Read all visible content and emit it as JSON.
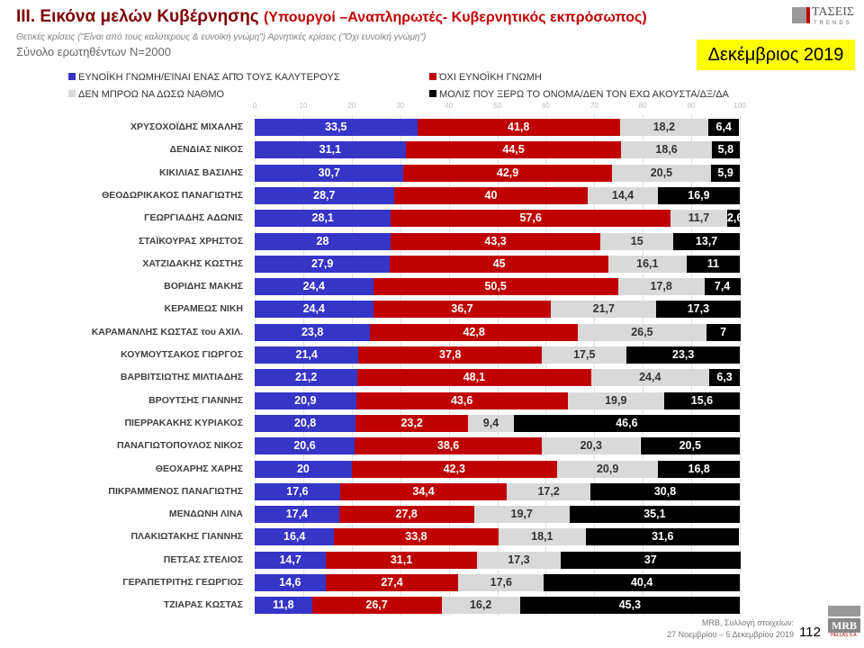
{
  "header": {
    "title": "III. Εικόνα μελών Κυβέρνησης",
    "subtitle": "(Υπουργοί –Αναπληρωτές- Κυβερνητικός εκπρόσωπος)",
    "note": "Θετικές κρίσεις (\"Είναι από τους καλύτερους & ευνοϊκή γνώμη\") Αρνητικές κρίσεις (\"Όχι ευνοϊκή γνώμη\")",
    "sample": "Σύνολο ερωτηθέντων Ν=2000",
    "month": "Δεκέμβριος 2019",
    "logo_text": "ΤΑΣΕΙΣ",
    "logo_sub": "TRENDS"
  },
  "footer": {
    "source_line1": "MRB, Συλλογή στοιχείων:",
    "source_line2": "27 Νοεμβρίου – 5 Δεκεμβρίου 2019",
    "page": "112",
    "logo_text": "MRB",
    "logo_sub": "HELLAS S.A."
  },
  "chart_data": {
    "type": "bar",
    "orientation": "horizontal-stacked",
    "xlim": [
      0,
      100
    ],
    "xticks": [
      "0",
      "10",
      "20",
      "30",
      "40",
      "50",
      "60",
      "70",
      "80",
      "90",
      "100"
    ],
    "grid": true,
    "legend_position": "top",
    "colors": [
      "#3535c8",
      "#c00000",
      "#d9d9d9",
      "#000000"
    ],
    "categories": [
      "ΧΡΥΣΟΧΟΪΔΗΣ ΜΙΧΑΛΗΣ",
      "ΔΕΝΔΙΑΣ ΝΙΚΟΣ",
      "ΚΙΚΙΛΙΑΣ ΒΑΣΙΛΗΣ",
      "ΘΕΟΔΩΡΙΚΑΚΟΣ ΠΑΝΑΓΙΩΤΗΣ",
      "ΓΕΩΡΓΙΑΔΗΣ ΑΔΩΝΙΣ",
      "ΣΤΑΪΚΟΥΡΑΣ ΧΡΗΣΤΟΣ",
      "ΧΑΤΖΙΔΑΚΗΣ ΚΩΣΤΗΣ",
      "ΒΟΡΙΔΗΣ ΜΑΚΗΣ",
      "ΚΕΡΑΜΕΩΣ ΝΙΚΗ",
      "ΚΑΡΑΜΑΝΛΗΣ ΚΩΣΤΑΣ του ΑΧΙΛ.",
      "ΚΟΥΜΟΥΤΣΑΚΟΣ ΓΙΩΡΓΟΣ",
      "ΒΑΡΒΙΤΣΙΩΤΗΣ ΜΙΛΤΙΑΔΗΣ",
      "ΒΡΟΥΤΣΗΣ ΓΙΑΝΝΗΣ",
      "ΠΙΕΡΡΑΚΑΚΗΣ ΚΥΡΙΑΚΟΣ",
      "ΠΑΝΑΓΙΩΤΟΠΟΥΛΟΣ ΝΙΚΟΣ",
      "ΘΕΟΧΑΡΗΣ ΧΑΡΗΣ",
      "ΠΙΚΡΑΜΜΕΝΟΣ ΠΑΝΑΓΙΩΤΗΣ",
      "ΜΕΝΔΩΝΗ ΛΙΝΑ",
      "ΠΛΑΚΙΩΤΑΚΗΣ ΓΙΑΝΝΗΣ",
      "ΠΕΤΣΑΣ ΣΤΕΛΙΟΣ",
      "ΓΕΡΑΠΕΤΡΙΤΗΣ ΓΕΩΡΓΙΟΣ",
      "ΤΖΙΑΡΑΣ ΚΩΣΤΑΣ"
    ],
    "series": [
      {
        "name": "ΕΥΝΟΪΚΗ ΓΝΩΜΗ/ΕΊΝΑΙ ΕΝΑΣ ΑΠΌ ΤΟΥΣ ΚΑΛΥΤΕΡΟΥΣ",
        "values": [
          33.5,
          31.1,
          30.7,
          28.7,
          28.1,
          28,
          27.9,
          24.4,
          24.4,
          23.8,
          21.4,
          21.2,
          20.9,
          20.8,
          20.6,
          20,
          17.6,
          17.4,
          16.4,
          14.7,
          14.6,
          11.8
        ]
      },
      {
        "name": "ΌΧΙ ΕΥΝΟΪΚΗ ΓΝΩΜΗ",
        "values": [
          41.8,
          44.5,
          42.9,
          40,
          57.6,
          43.3,
          45,
          50.5,
          36.7,
          42.8,
          37.8,
          48.1,
          43.6,
          23.2,
          38.6,
          42.3,
          34.4,
          27.8,
          33.8,
          31.1,
          27.4,
          26.7
        ]
      },
      {
        "name": "ΔΕΝ ΜΠΡΟΩ ΝΑ ΔΩΣΩ ΝΑΘΜΟ",
        "values": [
          18.2,
          18.6,
          20.5,
          14.4,
          11.7,
          15,
          16.1,
          17.8,
          21.7,
          26.5,
          17.5,
          24.4,
          19.9,
          9.4,
          20.3,
          20.9,
          17.2,
          19.7,
          18.1,
          17.3,
          17.6,
          16.2
        ]
      },
      {
        "name": "ΜΟΛΙΣ ΠΟΥ ΞΕΡΩ ΤΟ ΟΝΟΜΑ/ΔΕΝ ΤΟΝ ΕΧΩ ΑΚΟΥΣΤΑ/ΔΞ/ΔΑ",
        "values": [
          6.4,
          5.8,
          5.9,
          16.9,
          2.6,
          13.7,
          11,
          7.4,
          17.3,
          7,
          23.3,
          6.3,
          15.6,
          46.6,
          20.5,
          16.8,
          30.8,
          35.1,
          31.6,
          37,
          40.4,
          45.3
        ]
      }
    ]
  }
}
